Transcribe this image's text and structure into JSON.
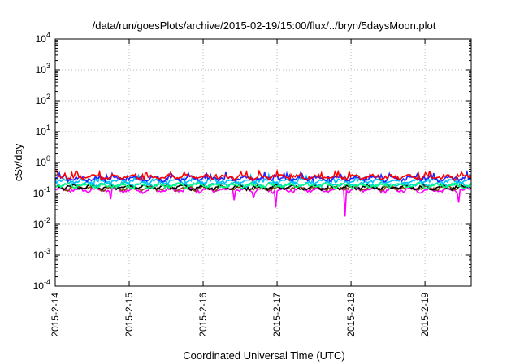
{
  "chart_data": {
    "type": "line",
    "title": "/data/run/goesPlots/archive/2015-02-19/15:00/flux/../bryn/5daysMoon.plot",
    "xlabel": "Coordinated Universal Time (UTC)",
    "ylabel": "cSv/day",
    "yscale": "log",
    "ylim": [
      0.0001,
      10000
    ],
    "xlim": [
      "2015-02-14 00:00",
      "2015-02-19 15:00"
    ],
    "y_ticks": [
      {
        "base": "10",
        "exp": "-4",
        "value": 0.0001
      },
      {
        "base": "10",
        "exp": "-3",
        "value": 0.001
      },
      {
        "base": "10",
        "exp": "-2",
        "value": 0.01
      },
      {
        "base": "10",
        "exp": "-1",
        "value": 0.1
      },
      {
        "base": "10",
        "exp": "0",
        "value": 1
      },
      {
        "base": "10",
        "exp": "1",
        "value": 10
      },
      {
        "base": "10",
        "exp": "2",
        "value": 100
      },
      {
        "base": "10",
        "exp": "3",
        "value": 1000
      },
      {
        "base": "10",
        "exp": "4",
        "value": 10000
      }
    ],
    "x_ticks": [
      "2015-2-14",
      "2015-2-15",
      "2015-2-16",
      "2015-2-17",
      "2015-2-18",
      "2015-2-19"
    ],
    "grid": true,
    "legend": "none",
    "series": [
      {
        "color": "#ff00ff",
        "baseline": 0.13,
        "dips": [
          {
            "day": 0.75,
            "value": 0.065
          },
          {
            "day": 2.42,
            "value": 0.06
          },
          {
            "day": 2.68,
            "value": 0.07
          },
          {
            "day": 2.98,
            "value": 0.035
          },
          {
            "day": 3.92,
            "value": 0.018
          },
          {
            "day": 5.45,
            "value": 0.05
          }
        ]
      },
      {
        "color": "#8b4513",
        "baseline": 0.15
      },
      {
        "color": "#000000",
        "baseline": 0.16
      },
      {
        "color": "#00ced1",
        "baseline": 0.2
      },
      {
        "color": "#00ff7f",
        "baseline": 0.18
      },
      {
        "color": "#00bfff",
        "baseline": 0.25
      },
      {
        "color": "#2222ff",
        "baseline": 0.3
      },
      {
        "color": "#ff0000",
        "baseline": 0.34
      }
    ]
  }
}
